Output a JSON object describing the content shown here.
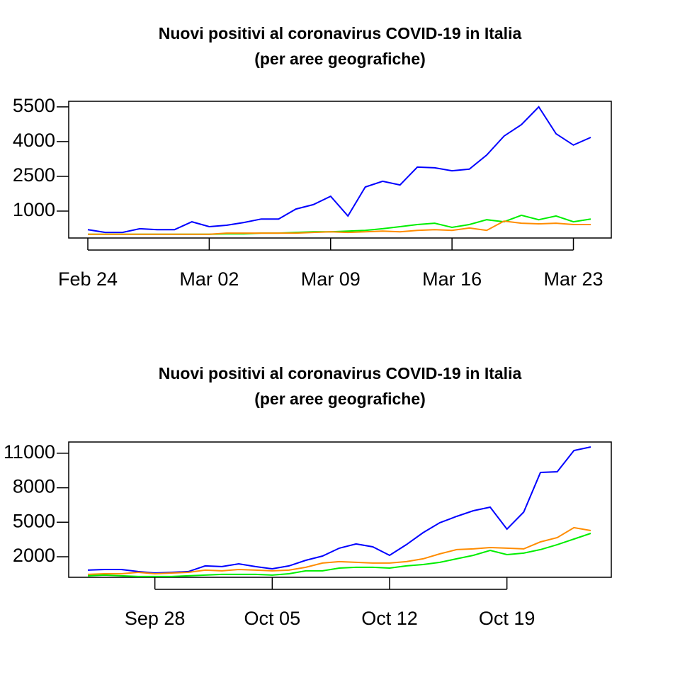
{
  "chart_data": [
    {
      "type": "line",
      "title": "Nuovi positivi al coronavirus COVID-19 in Italia",
      "subtitle": "(per aree geografiche)",
      "x": [
        "Feb 24",
        "Feb 25",
        "Feb 26",
        "Feb 27",
        "Feb 28",
        "Feb 29",
        "Mar 01",
        "Mar 02",
        "Mar 03",
        "Mar 04",
        "Mar 05",
        "Mar 06",
        "Mar 07",
        "Mar 08",
        "Mar 09",
        "Mar 10",
        "Mar 11",
        "Mar 12",
        "Mar 13",
        "Mar 14",
        "Mar 15",
        "Mar 16",
        "Mar 17",
        "Mar 18",
        "Mar 19",
        "Mar 20",
        "Mar 21",
        "Mar 22",
        "Mar 23",
        "Mar 24"
      ],
      "xticks": [
        "Feb 24",
        "Mar 02",
        "Mar 09",
        "Mar 16",
        "Mar 23"
      ],
      "ylim": [
        -160,
        5740
      ],
      "yticks": [
        1000,
        2500,
        4000,
        5500
      ],
      "series": [
        {
          "color": "#0000ff",
          "values": [
            200,
            80,
            80,
            240,
            200,
            200,
            540,
            330,
            390,
            510,
            660,
            660,
            1090,
            1280,
            1640,
            790,
            2040,
            2290,
            2130,
            2900,
            2870,
            2740,
            2810,
            3420,
            4240,
            4730,
            5500,
            4340,
            3850,
            4180
          ]
        },
        {
          "color": "#00ee00",
          "values": [
            0,
            0,
            0,
            0,
            0,
            0,
            0,
            0,
            20,
            20,
            50,
            50,
            80,
            110,
            110,
            140,
            170,
            240,
            330,
            420,
            480,
            300,
            420,
            630,
            540,
            820,
            630,
            790,
            540,
            660
          ]
        },
        {
          "color": "#ff8c00",
          "values": [
            0,
            0,
            0,
            0,
            0,
            0,
            0,
            0,
            50,
            50,
            50,
            50,
            50,
            80,
            110,
            80,
            110,
            140,
            110,
            170,
            200,
            170,
            270,
            170,
            570,
            480,
            450,
            480,
            420,
            420
          ]
        }
      ]
    },
    {
      "type": "line",
      "title": "Nuovi positivi al coronavirus COVID-19 in Italia",
      "subtitle": "(per aree geografiche)",
      "x": [
        "Sep 24",
        "Sep 25",
        "Sep 26",
        "Sep 27",
        "Sep 28",
        "Sep 29",
        "Sep 30",
        "Oct 01",
        "Oct 02",
        "Oct 03",
        "Oct 04",
        "Oct 05",
        "Oct 06",
        "Oct 07",
        "Oct 08",
        "Oct 09",
        "Oct 10",
        "Oct 11",
        "Oct 12",
        "Oct 13",
        "Oct 14",
        "Oct 15",
        "Oct 16",
        "Oct 17",
        "Oct 18",
        "Oct 19",
        "Oct 20",
        "Oct 21",
        "Oct 22",
        "Oct 23",
        "Oct 24"
      ],
      "xticks": [
        "Sep 28",
        "Oct 05",
        "Oct 12",
        "Oct 19"
      ],
      "ylim": [
        210,
        11980
      ],
      "yticks": [
        2000,
        5000,
        8000,
        11000
      ],
      "series": [
        {
          "color": "#0000ff",
          "values": [
            830,
            890,
            890,
            710,
            580,
            640,
            710,
            1200,
            1140,
            1380,
            1140,
            950,
            1200,
            1690,
            2060,
            2740,
            3110,
            2860,
            2120,
            3050,
            4090,
            4960,
            5510,
            6000,
            6310,
            4400,
            5880,
            9330,
            9390,
            11240,
            11550
          ]
        },
        {
          "color": "#ff8c00",
          "values": [
            460,
            520,
            520,
            640,
            520,
            580,
            640,
            830,
            770,
            890,
            830,
            770,
            830,
            1080,
            1450,
            1570,
            1510,
            1450,
            1450,
            1570,
            1820,
            2250,
            2620,
            2680,
            2800,
            2740,
            2680,
            3290,
            3660,
            4530,
            4280
          ]
        },
        {
          "color": "#00ee00",
          "values": [
            340,
            400,
            340,
            280,
            280,
            280,
            340,
            400,
            460,
            460,
            460,
            400,
            520,
            770,
            770,
            1010,
            1080,
            1080,
            1010,
            1200,
            1320,
            1510,
            1820,
            2120,
            2550,
            2180,
            2310,
            2620,
            3050,
            3540,
            4030
          ]
        }
      ]
    }
  ]
}
